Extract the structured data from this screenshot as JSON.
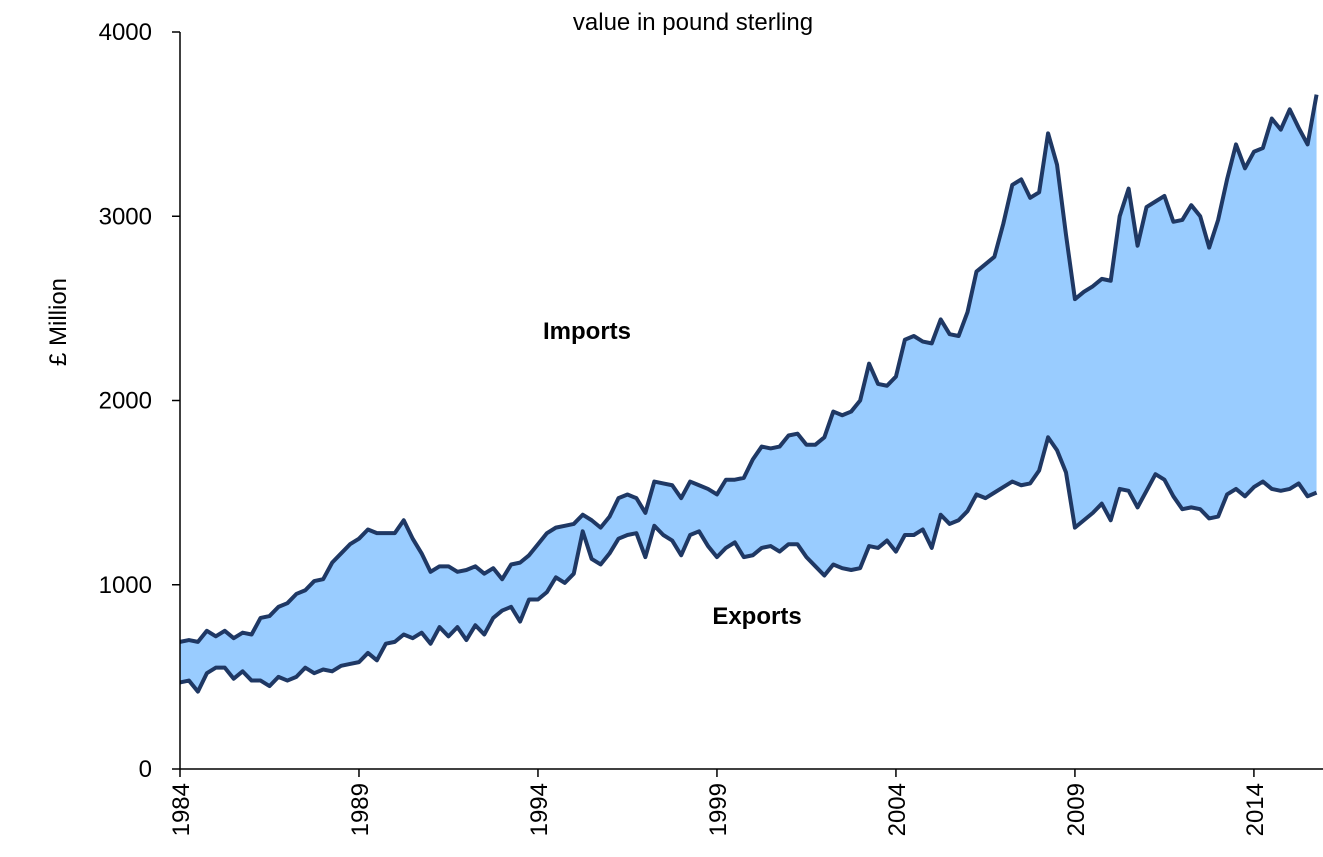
{
  "chart_data": {
    "type": "area_between",
    "subtitle": "value in pound sterling",
    "ylabel": "£ Million",
    "annotations": [
      "Imports",
      "Exports"
    ],
    "fill_color": "#99ccff",
    "x": [
      1984,
      1984.25,
      1984.5,
      1984.75,
      1985,
      1985.25,
      1985.5,
      1985.75,
      1986,
      1986.25,
      1986.5,
      1986.75,
      1987,
      1987.25,
      1987.5,
      1987.75,
      1988,
      1988.25,
      1988.5,
      1988.75,
      1989,
      1989.25,
      1989.5,
      1989.75,
      1990,
      1990.25,
      1990.5,
      1990.75,
      1991,
      1991.25,
      1991.5,
      1991.75,
      1992,
      1992.25,
      1992.5,
      1992.75,
      1993,
      1993.25,
      1993.5,
      1993.75,
      1994,
      1994.25,
      1994.5,
      1994.75,
      1995,
      1995.25,
      1995.5,
      1995.75,
      1996,
      1996.25,
      1996.5,
      1996.75,
      1997,
      1997.25,
      1997.5,
      1997.75,
      1998,
      1998.25,
      1998.5,
      1998.75,
      1999,
      1999.25,
      1999.5,
      1999.75,
      2000,
      2000.25,
      2000.5,
      2000.75,
      2001,
      2001.25,
      2001.5,
      2001.75,
      2002,
      2002.25,
      2002.5,
      2002.75,
      2003,
      2003.25,
      2003.5,
      2003.75,
      2004,
      2004.25,
      2004.5,
      2004.75,
      2005,
      2005.25,
      2005.5,
      2005.75,
      2006,
      2006.25,
      2006.5,
      2006.75,
      2007,
      2007.25,
      2007.5,
      2007.75,
      2008,
      2008.25,
      2008.5,
      2008.75,
      2009,
      2009.25,
      2009.5,
      2009.75,
      2010,
      2010.25,
      2010.5,
      2010.75,
      2011,
      2011.25,
      2011.5,
      2011.75,
      2012,
      2012.25,
      2012.5,
      2012.75,
      2013,
      2013.25,
      2013.5,
      2013.75,
      2014,
      2014.25,
      2014.5,
      2014.75,
      2015,
      2015.25,
      2015.5,
      2015.75
    ],
    "series": [
      {
        "name": "Imports",
        "color": "#1f3864",
        "values": [
          690,
          700,
          690,
          750,
          720,
          750,
          710,
          740,
          730,
          820,
          830,
          880,
          900,
          950,
          970,
          1020,
          1030,
          1120,
          1170,
          1220,
          1250,
          1300,
          1280,
          1280,
          1280,
          1350,
          1250,
          1170,
          1070,
          1100,
          1100,
          1070,
          1080,
          1100,
          1060,
          1090,
          1030,
          1110,
          1120,
          1160,
          1220,
          1280,
          1310,
          1320,
          1330,
          1380,
          1350,
          1310,
          1370,
          1470,
          1490,
          1470,
          1390,
          1560,
          1550,
          1540,
          1470,
          1560,
          1540,
          1520,
          1490,
          1570,
          1570,
          1580,
          1680,
          1750,
          1740,
          1750,
          1810,
          1820,
          1760,
          1760,
          1800,
          1940,
          1920,
          1940,
          2000,
          2200,
          2090,
          2080,
          2130,
          2330,
          2350,
          2320,
          2310,
          2440,
          2360,
          2350,
          2480,
          2700,
          2740,
          2780,
          2960,
          3170,
          3200,
          3100,
          3130,
          3450,
          3280,
          2900,
          2550,
          2590,
          2620,
          2660,
          2650,
          3000,
          3150,
          2840,
          3050,
          3080,
          3110,
          2970,
          2980,
          3060,
          3000,
          2830,
          2980,
          3200,
          3390,
          3260,
          3350,
          3370,
          3530,
          3470,
          3580,
          3480,
          3390,
          3660
        ]
      },
      {
        "name": "Exports",
        "color": "#1f3864",
        "values": [
          470,
          480,
          420,
          520,
          550,
          550,
          490,
          530,
          480,
          480,
          450,
          500,
          480,
          500,
          550,
          520,
          540,
          530,
          560,
          570,
          580,
          630,
          590,
          680,
          690,
          730,
          710,
          740,
          680,
          770,
          720,
          770,
          700,
          780,
          730,
          820,
          860,
          880,
          800,
          920,
          920,
          960,
          1040,
          1010,
          1060,
          1290,
          1140,
          1110,
          1170,
          1250,
          1270,
          1280,
          1150,
          1320,
          1270,
          1240,
          1160,
          1270,
          1290,
          1210,
          1150,
          1200,
          1230,
          1150,
          1160,
          1200,
          1210,
          1180,
          1220,
          1220,
          1150,
          1100,
          1050,
          1110,
          1090,
          1080,
          1090,
          1210,
          1200,
          1240,
          1180,
          1270,
          1270,
          1300,
          1200,
          1380,
          1330,
          1350,
          1400,
          1490,
          1470,
          1500,
          1530,
          1560,
          1540,
          1550,
          1620,
          1800,
          1730,
          1610,
          1310,
          1350,
          1390,
          1440,
          1350,
          1520,
          1510,
          1420,
          1510,
          1600,
          1570,
          1480,
          1410,
          1420,
          1410,
          1360,
          1370,
          1490,
          1520,
          1480,
          1530,
          1560,
          1520,
          1510,
          1520,
          1550,
          1480,
          1500
        ]
      }
    ],
    "xlim": [
      1984,
      2015.93
    ],
    "ylim": [
      0,
      4000
    ],
    "xticks": [
      1984,
      1989,
      1994,
      1999,
      2004,
      2009,
      2014
    ],
    "yticks": [
      0,
      1000,
      2000,
      3000,
      4000
    ]
  }
}
